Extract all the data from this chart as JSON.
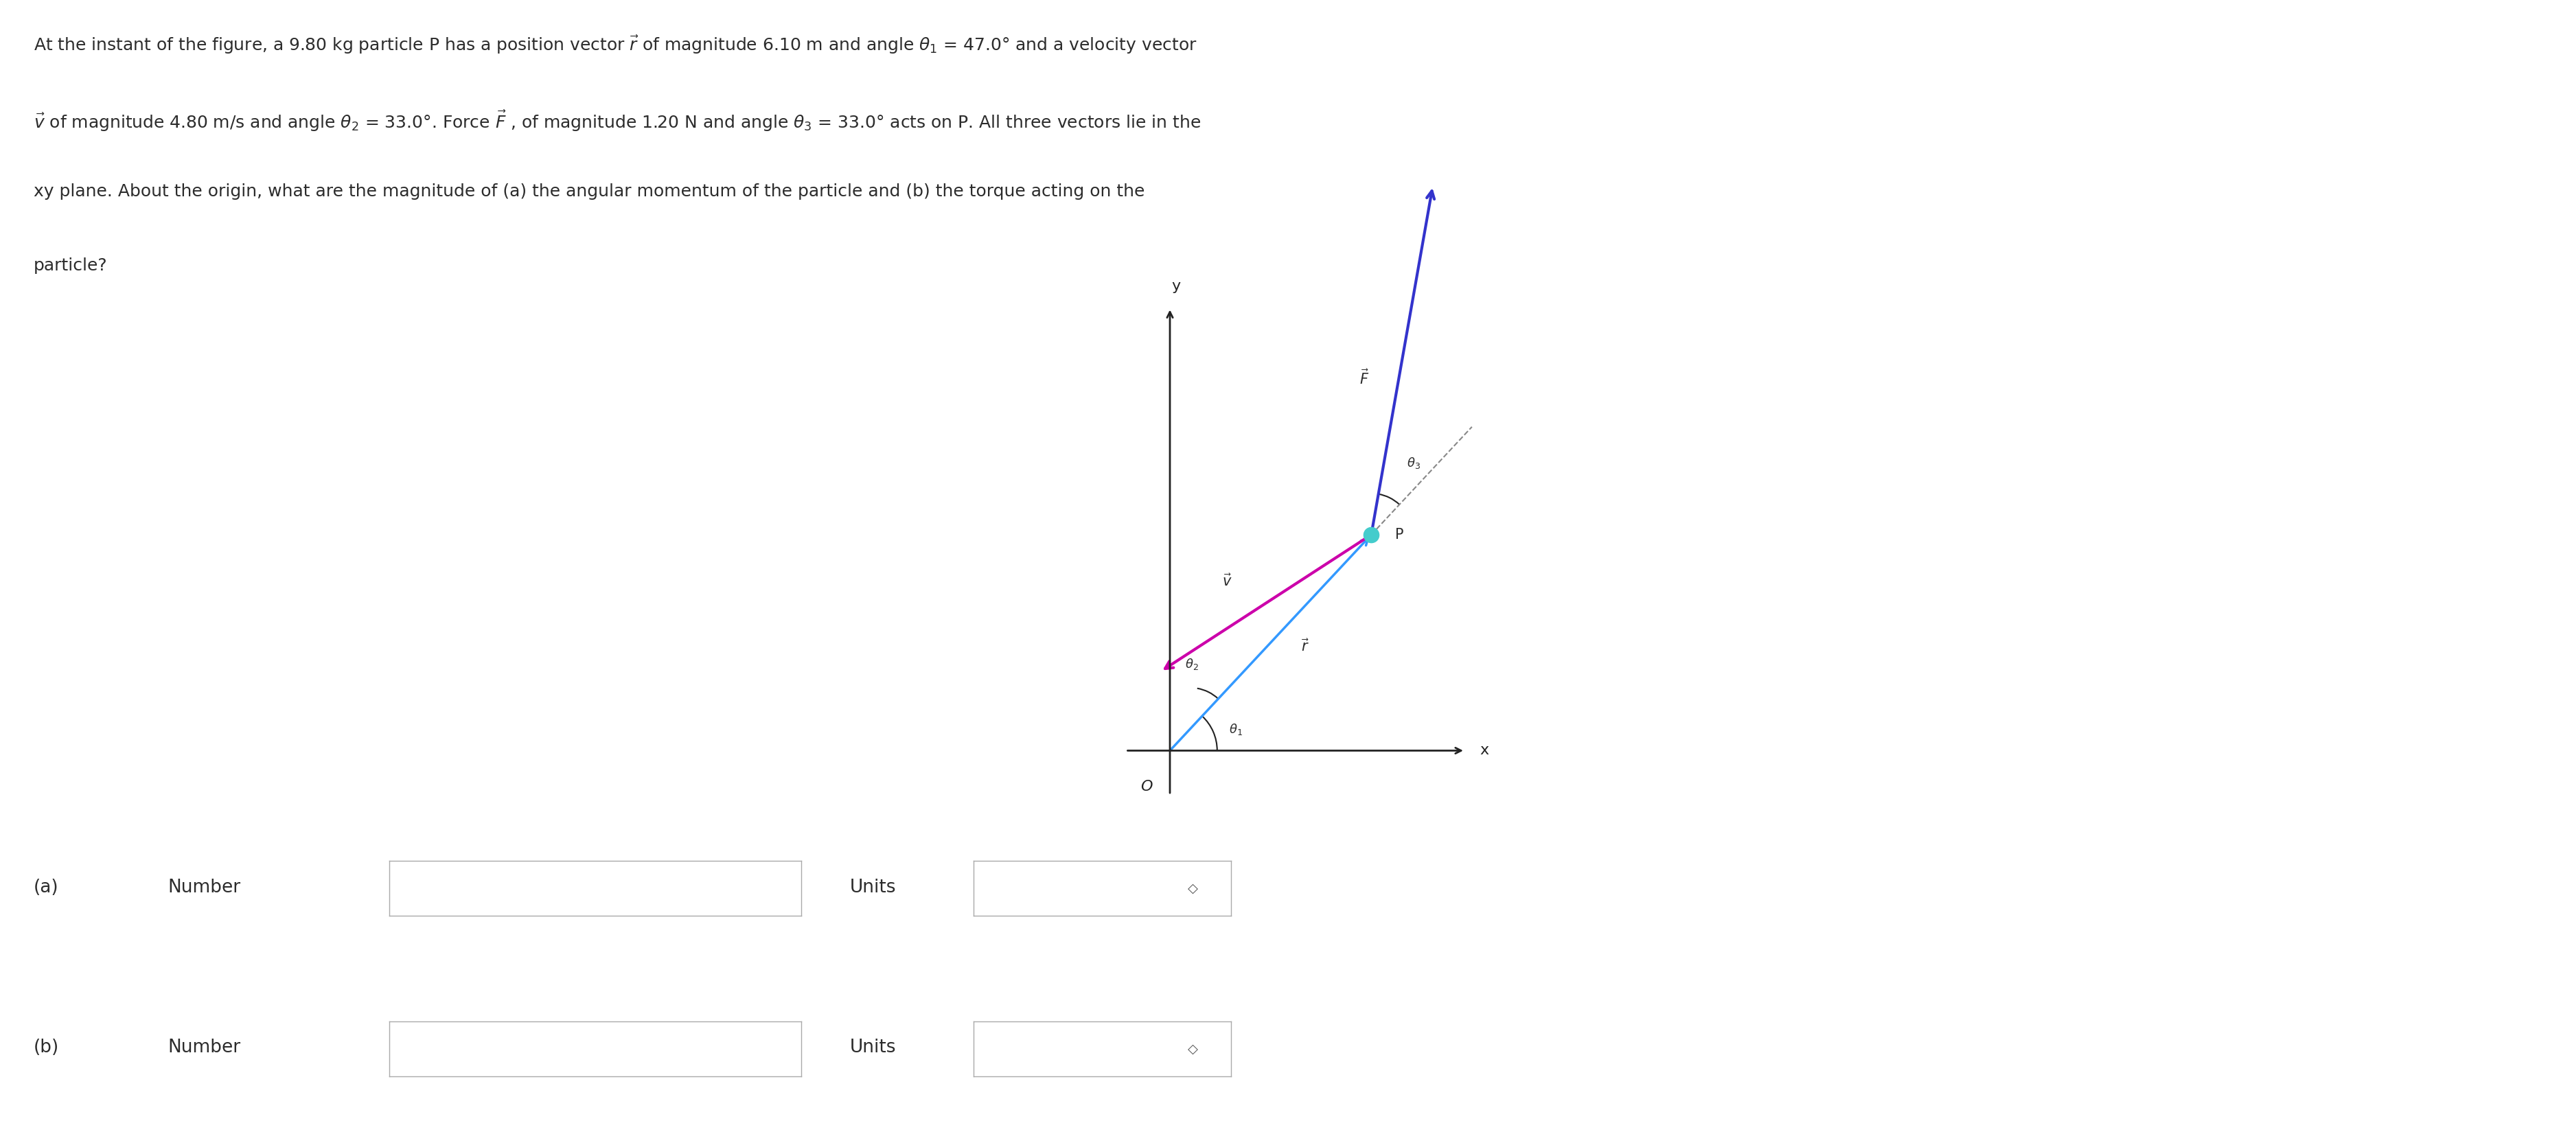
{
  "bg_color": "#ffffff",
  "fig_width": 37.52,
  "fig_height": 16.68,
  "text_color": "#2c2c2c",
  "problem_text_lines": [
    "At the instant of the figure, a 9.80 kg particle P has a position vector $\\vec{r}$ of magnitude 6.10 m and angle $\\theta_1$ = 47.0° and a velocity vector",
    "$\\vec{v}$ of magnitude 4.80 m/s and angle $\\theta_2$ = 33.0°. Force $\\vec{F}$ , of magnitude 1.20 N and angle $\\theta_3$ = 33.0° acts on P. All three vectors lie in the",
    "xy plane. About the origin, what are the magnitude of (a) the angular momentum of the particle and (b) the torque acting on the",
    "particle?"
  ],
  "r_color": "#3399ff",
  "v_color": "#cc00aa",
  "F_color": "#3333cc",
  "P_color": "#44cccc",
  "axis_color": "#222222",
  "dashed_color": "#888888",
  "theta1": 47.0,
  "theta2": 213.0,
  "theta3_from_r": 33.0,
  "input_box_color": "#1a7fcc",
  "input_box_text": "#ffffff",
  "units_box_border": "#aaaaaa"
}
